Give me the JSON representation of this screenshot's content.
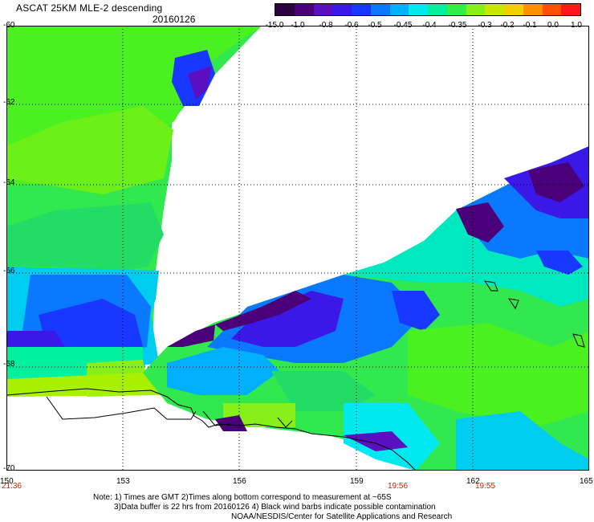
{
  "header": {
    "title": "ASCAT 25KM MLE-2 descending",
    "date": "20160126"
  },
  "colorbar": {
    "labels": [
      "-15.0",
      "-1.0",
      "-0.8",
      "-0.6",
      "-0.5",
      "-0.45",
      "-0.4",
      "-0.35",
      "-0.3",
      "-0.2",
      "-0.1",
      "0.0",
      "1.0"
    ],
    "colors": [
      "#2a0040",
      "#4a0078",
      "#5a10c0",
      "#3a18e8",
      "#1838ff",
      "#0a78ff",
      "#00b0ff",
      "#00e8f0",
      "#00f0a0",
      "#30f048",
      "#88f018",
      "#c8e800",
      "#f0d000",
      "#ff9000",
      "#ff5000",
      "#ff1818"
    ]
  },
  "map": {
    "lat_labels": [
      "-60",
      "-62",
      "-64",
      "-66",
      "-68",
      "-70"
    ],
    "lon_labels": [
      "150",
      "153",
      "156",
      "159",
      "162",
      "165"
    ],
    "time_labels": [
      "21:36",
      "19:56",
      "19:55"
    ],
    "lat_range": [
      -70,
      -60
    ],
    "lon_range": [
      150,
      165
    ]
  },
  "notes": {
    "line1": "Note: 1) Times are GMT 2)Times along bottom correspond to measurement at ~65S",
    "line2": "3)Data buffer is 22 hrs from 20160126 4) Black wind barbs indicate possible contamination",
    "line3": "NOAA/NESDIS/Center for Satellite Applications and Research"
  }
}
